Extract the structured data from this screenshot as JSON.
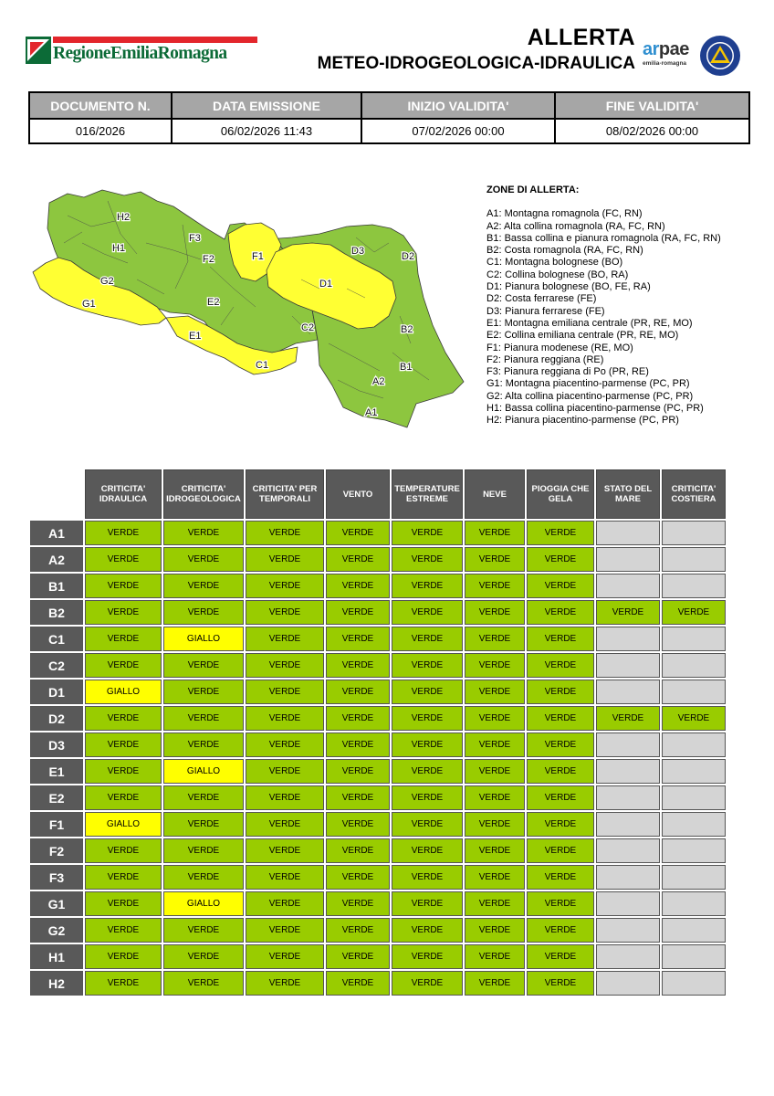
{
  "header": {
    "region_name": "RegioneEmiliaRomagna",
    "title": "ALLERTA",
    "subtitle": "METEO-IDROGEOLOGICA-IDRAULICA",
    "arpae_name_a": "ar",
    "arpae_name_b": "pae",
    "arpae_sub": "emilia-romagna",
    "colors": {
      "region_green": "#0c6b37",
      "region_red": "#e3262c",
      "arpae_blue": "#2f8fd0",
      "pc_blue": "#1f3f8f",
      "pc_yellow": "#f5c400"
    }
  },
  "document": {
    "headers": [
      "DOCUMENTO N.",
      "DATA EMISSIONE",
      "INIZIO VALIDITA'",
      "FINE VALIDITA'"
    ],
    "values": [
      "016/2026",
      "06/02/2026 11:43",
      "07/02/2026 00:00",
      "08/02/2026 00:00"
    ]
  },
  "map": {
    "labels": [
      "H2",
      "H1",
      "G2",
      "G1",
      "F3",
      "F2",
      "F1",
      "E2",
      "E1",
      "D1",
      "D2",
      "D3",
      "C1",
      "C2",
      "B1",
      "B2",
      "A1",
      "A2"
    ],
    "colors": {
      "green": "#8dc63f",
      "yellow": "#ffff33"
    }
  },
  "zones_legend": {
    "title": "ZONE DI ALLERTA:",
    "items": [
      "A1: Montagna romagnola (FC, RN)",
      "A2: Alta collina romagnola (RA, FC, RN)",
      "B1: Bassa collina e pianura romagnola (RA, FC, RN)",
      "B2: Costa romagnola (RA, FC, RN)",
      "C1: Montagna bolognese (BO)",
      "C2: Collina bolognese (BO, RA)",
      "D1: Pianura bolognese (BO, FE, RA)",
      "D2: Costa ferrarese (FE)",
      "D3: Pianura ferrarese (FE)",
      "E1: Montagna emiliana centrale (PR, RE, MO)",
      "E2: Collina emiliana centrale (PR, RE, MO)",
      "F1: Pianura modenese (RE, MO)",
      "F2: Pianura reggiana (RE)",
      "F3: Pianura reggiana di Po (PR, RE)",
      "G1: Montagna piacentino-parmense (PC, PR)",
      "G2: Alta collina piacentino-parmense (PC, PR)",
      "H1: Bassa collina piacentino-parmense (PC, PR)",
      "H2: Pianura piacentino-parmense (PC, PR)"
    ]
  },
  "alert_table": {
    "columns": [
      [
        "CRITICITA'",
        "IDRAULICA"
      ],
      [
        "CRITICITA'",
        "IDROGEOLOGICA"
      ],
      [
        "CRITICITA' PER",
        "TEMPORALI"
      ],
      [
        "VENTO"
      ],
      [
        "TEMPERATURE",
        "ESTREME"
      ],
      [
        "NEVE"
      ],
      [
        "PIOGGIA CHE",
        "GELA"
      ],
      [
        "STATO DEL",
        "MARE"
      ],
      [
        "CRITICITA'",
        "COSTIERA"
      ]
    ],
    "rows": [
      {
        "zone": "A1",
        "values": [
          "VERDE",
          "VERDE",
          "VERDE",
          "VERDE",
          "VERDE",
          "VERDE",
          "VERDE",
          "",
          ""
        ]
      },
      {
        "zone": "A2",
        "values": [
          "VERDE",
          "VERDE",
          "VERDE",
          "VERDE",
          "VERDE",
          "VERDE",
          "VERDE",
          "",
          ""
        ]
      },
      {
        "zone": "B1",
        "values": [
          "VERDE",
          "VERDE",
          "VERDE",
          "VERDE",
          "VERDE",
          "VERDE",
          "VERDE",
          "",
          ""
        ]
      },
      {
        "zone": "B2",
        "values": [
          "VERDE",
          "VERDE",
          "VERDE",
          "VERDE",
          "VERDE",
          "VERDE",
          "VERDE",
          "VERDE",
          "VERDE"
        ]
      },
      {
        "zone": "C1",
        "values": [
          "VERDE",
          "GIALLO",
          "VERDE",
          "VERDE",
          "VERDE",
          "VERDE",
          "VERDE",
          "",
          ""
        ]
      },
      {
        "zone": "C2",
        "values": [
          "VERDE",
          "VERDE",
          "VERDE",
          "VERDE",
          "VERDE",
          "VERDE",
          "VERDE",
          "",
          ""
        ]
      },
      {
        "zone": "D1",
        "values": [
          "GIALLO",
          "VERDE",
          "VERDE",
          "VERDE",
          "VERDE",
          "VERDE",
          "VERDE",
          "",
          ""
        ]
      },
      {
        "zone": "D2",
        "values": [
          "VERDE",
          "VERDE",
          "VERDE",
          "VERDE",
          "VERDE",
          "VERDE",
          "VERDE",
          "VERDE",
          "VERDE"
        ]
      },
      {
        "zone": "D3",
        "values": [
          "VERDE",
          "VERDE",
          "VERDE",
          "VERDE",
          "VERDE",
          "VERDE",
          "VERDE",
          "",
          ""
        ]
      },
      {
        "zone": "E1",
        "values": [
          "VERDE",
          "GIALLO",
          "VERDE",
          "VERDE",
          "VERDE",
          "VERDE",
          "VERDE",
          "",
          ""
        ]
      },
      {
        "zone": "E2",
        "values": [
          "VERDE",
          "VERDE",
          "VERDE",
          "VERDE",
          "VERDE",
          "VERDE",
          "VERDE",
          "",
          ""
        ]
      },
      {
        "zone": "F1",
        "values": [
          "GIALLO",
          "VERDE",
          "VERDE",
          "VERDE",
          "VERDE",
          "VERDE",
          "VERDE",
          "",
          ""
        ]
      },
      {
        "zone": "F2",
        "values": [
          "VERDE",
          "VERDE",
          "VERDE",
          "VERDE",
          "VERDE",
          "VERDE",
          "VERDE",
          "",
          ""
        ]
      },
      {
        "zone": "F3",
        "values": [
          "VERDE",
          "VERDE",
          "VERDE",
          "VERDE",
          "VERDE",
          "VERDE",
          "VERDE",
          "",
          ""
        ]
      },
      {
        "zone": "G1",
        "values": [
          "VERDE",
          "GIALLO",
          "VERDE",
          "VERDE",
          "VERDE",
          "VERDE",
          "VERDE",
          "",
          ""
        ]
      },
      {
        "zone": "G2",
        "values": [
          "VERDE",
          "VERDE",
          "VERDE",
          "VERDE",
          "VERDE",
          "VERDE",
          "VERDE",
          "",
          ""
        ]
      },
      {
        "zone": "H1",
        "values": [
          "VERDE",
          "VERDE",
          "VERDE",
          "VERDE",
          "VERDE",
          "VERDE",
          "VERDE",
          "",
          ""
        ]
      },
      {
        "zone": "H2",
        "values": [
          "VERDE",
          "VERDE",
          "VERDE",
          "VERDE",
          "VERDE",
          "VERDE",
          "VERDE",
          "",
          ""
        ]
      }
    ]
  }
}
